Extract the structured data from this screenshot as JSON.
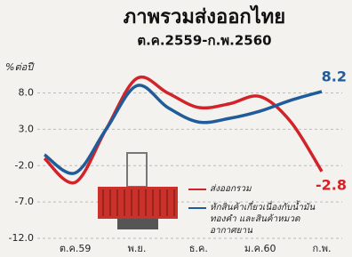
{
  "chart_data": {
    "type": "line",
    "title": "ภาพรวมส่งออกไทย",
    "subtitle": "ต.ค.2559-ก.พ.2560",
    "y_label": "%ต่อปี",
    "categories": [
      null,
      "ต.ค.59",
      null,
      "พ.ย.",
      null,
      "ธ.ค.",
      null,
      "ม.ค.60",
      null,
      "ก.พ."
    ],
    "series": [
      {
        "name": "ส่งออกรวม",
        "color": "#d2232a",
        "values": [
          -1,
          -4.3,
          3,
          10,
          8,
          6,
          6.5,
          7.5,
          4,
          -2.8
        ]
      },
      {
        "name": "หักสินค้าเกี่ยวเนื่องกับน้ำมัน ทองคำ และสินค้าหมวดอากาศยาน",
        "color": "#1f5c99",
        "values": [
          -0.5,
          -3,
          3,
          9,
          6,
          4,
          4.5,
          5.5,
          7,
          8.2
        ]
      }
    ],
    "ylim": [
      -12,
      11
    ],
    "yticks": [
      {
        "value": 8,
        "label": "8.0"
      },
      {
        "value": 3,
        "label": "3.0"
      },
      {
        "value": -2,
        "label": "-2.0"
      },
      {
        "value": -7,
        "label": "-7.0"
      },
      {
        "value": -12,
        "label": "-12.0"
      }
    ],
    "grid": true
  }
}
